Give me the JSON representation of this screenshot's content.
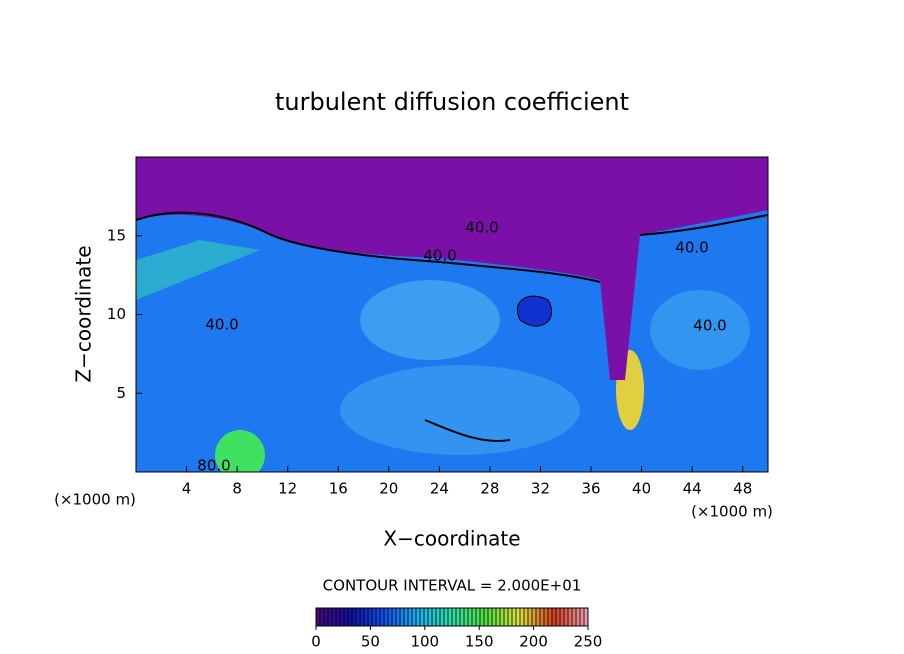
{
  "chart_data": {
    "type": "contour",
    "title": "turbulent diffusion coefficient",
    "xlabel": "X−coordinate",
    "ylabel": "Z−coordinate",
    "x_unit_label": "(×1000 m)",
    "y_unit_label": "(×1000 m)",
    "xlim": [
      0,
      50
    ],
    "ylim": [
      0,
      20
    ],
    "xticks": [
      4,
      8,
      12,
      16,
      20,
      24,
      28,
      32,
      36,
      40,
      44,
      48
    ],
    "yticks": [
      5,
      10,
      15
    ],
    "contour_interval_label": "CONTOUR INTERVAL = 2.000E+01",
    "contour_labels": [
      "40.0",
      "40.0",
      "40.0",
      "40.0",
      "40.0",
      "80.0"
    ],
    "colorbar": {
      "clim": [
        0,
        250
      ],
      "ticks": [
        0,
        50,
        100,
        150,
        200,
        250
      ],
      "colors": [
        "#4a0a7a",
        "#1010a0",
        "#1050f0",
        "#20b0f0",
        "#30e0a0",
        "#50e040",
        "#e0e040",
        "#d04020",
        "#f0a0b0"
      ]
    }
  }
}
